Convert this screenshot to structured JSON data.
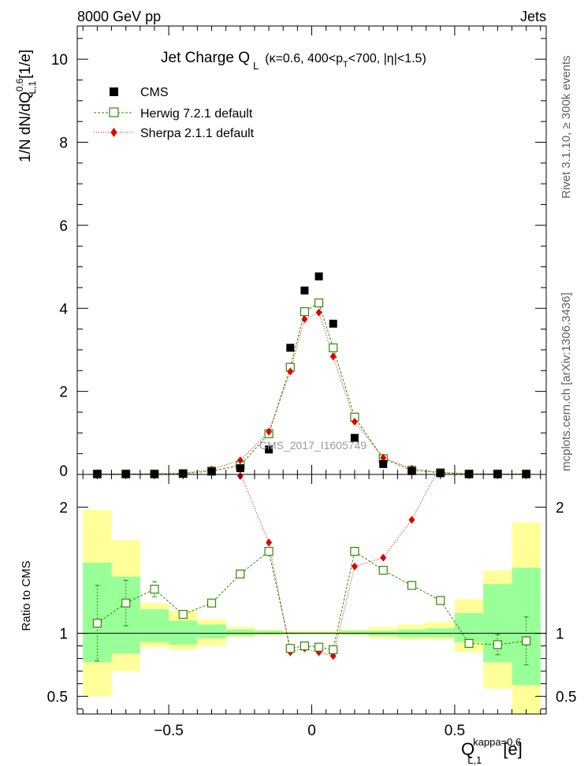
{
  "header": {
    "left_label": "8000 GeV pp",
    "right_label": "Jets",
    "side_label_rivet": "Rivet 3.1.10, ≥ 300k events",
    "side_label_mcplots": "mcplots.cern.ch [arXiv:1306.3436]"
  },
  "chart_data": [
    {
      "type": "scatter",
      "title_main": "Jet Charge Q",
      "title_sub": "L",
      "title_cond": "(κ=0.6, 400<p",
      "title_cond_sub": "T",
      "title_cond_end": "<700, |η|<1.5)",
      "ylabel": "1/N dN/dQ",
      "ylabel_sup": "0.6",
      "ylabel_sub": "L,1",
      "ylabel_unit": "[1/e]",
      "ylim": [
        0,
        10.8
      ],
      "xlim": [
        -0.82,
        0.82
      ],
      "yticks": [
        0,
        2,
        4,
        6,
        8,
        10
      ],
      "ytick_labels": [
        "0",
        "2",
        "4",
        "6",
        "8",
        "10"
      ],
      "watermark": "CMS_2017_I1605749",
      "legend": [
        "CMS",
        "Herwig 7.2.1 default",
        "Sherpa 2.1.1 default"
      ],
      "x": [
        -0.75,
        -0.65,
        -0.55,
        -0.45,
        -0.35,
        -0.25,
        -0.15,
        -0.075,
        -0.025,
        0.025,
        0.075,
        0.15,
        0.25,
        0.35,
        0.45,
        0.55,
        0.65,
        0.75
      ],
      "series": [
        {
          "name": "CMS",
          "color": "#000000",
          "values": [
            0.01,
            0.01,
            0.01,
            0.02,
            0.07,
            0.15,
            0.6,
            3.05,
            4.43,
            4.77,
            3.63,
            0.88,
            0.25,
            0.08,
            0.03,
            0.01,
            0.01,
            0.01
          ]
        },
        {
          "name": "Herwig 7.2.1 default",
          "color": "#2e8b00",
          "values": [
            0.01,
            0.01,
            0.01,
            0.02,
            0.08,
            0.22,
            0.98,
            2.58,
            3.92,
            4.13,
            3.05,
            1.38,
            0.38,
            0.1,
            0.04,
            0.01,
            0.01,
            0.01
          ]
        },
        {
          "name": "Sherpa 2.1.1 default",
          "color": "#e00000",
          "values": [
            0.01,
            0.01,
            0.02,
            0.03,
            0.12,
            0.34,
            1.03,
            2.48,
            3.74,
            3.9,
            2.84,
            1.27,
            0.4,
            0.14,
            0.05,
            0.02,
            0.01,
            0.01
          ]
        }
      ]
    },
    {
      "type": "line",
      "ylabel": "Ratio to CMS",
      "xlabel": "Q",
      "xlabel_sup": "kappa=0.6",
      "xlabel_sub": "L,1",
      "xlabel_unit": "[e]",
      "ylim": [
        0.36,
        2.26
      ],
      "xlim": [
        -0.82,
        0.82
      ],
      "yticks": [
        0.5,
        1,
        2
      ],
      "ytick_labels": [
        "0.5",
        "1",
        "2"
      ],
      "xticks": [
        -0.5,
        0,
        0.5
      ],
      "xtick_labels": [
        "−0.5",
        "0",
        "0.5"
      ],
      "bins": [
        [
          -0.8,
          -0.7
        ],
        [
          -0.7,
          -0.6
        ],
        [
          -0.6,
          -0.5
        ],
        [
          -0.5,
          -0.4
        ],
        [
          -0.4,
          -0.3
        ],
        [
          -0.3,
          -0.2
        ],
        [
          -0.2,
          -0.1
        ],
        [
          -0.1,
          -0.05
        ],
        [
          -0.05,
          0
        ],
        [
          0,
          0.05
        ],
        [
          0.05,
          0.1
        ],
        [
          0.1,
          0.2
        ],
        [
          0.2,
          0.3
        ],
        [
          0.3,
          0.4
        ],
        [
          0.4,
          0.5
        ],
        [
          0.5,
          0.6
        ],
        [
          0.6,
          0.7
        ],
        [
          0.7,
          0.8
        ]
      ],
      "band_outer": [
        [
          0.5,
          1.98
        ],
        [
          0.7,
          1.74
        ],
        [
          0.89,
          1.24
        ],
        [
          0.87,
          1.18
        ],
        [
          0.9,
          1.11
        ],
        [
          0.97,
          1.05
        ],
        [
          0.98,
          1.03
        ],
        [
          0.99,
          1.02
        ],
        [
          0.99,
          1.02
        ],
        [
          0.99,
          1.02
        ],
        [
          0.99,
          1.02
        ],
        [
          0.98,
          1.03
        ],
        [
          0.96,
          1.05
        ],
        [
          0.95,
          1.07
        ],
        [
          0.95,
          1.09
        ],
        [
          0.85,
          1.27
        ],
        [
          0.56,
          1.5
        ],
        [
          0.36,
          1.88
        ]
      ],
      "band_inner": [
        [
          0.77,
          1.56
        ],
        [
          0.84,
          1.45
        ],
        [
          0.93,
          1.19
        ],
        [
          0.91,
          1.1
        ],
        [
          0.96,
          1.07
        ],
        [
          0.98,
          1.03
        ],
        [
          0.99,
          1.02
        ],
        [
          0.995,
          1.01
        ],
        [
          0.995,
          1.01
        ],
        [
          0.995,
          1.01
        ],
        [
          0.995,
          1.01
        ],
        [
          0.99,
          1.02
        ],
        [
          0.98,
          1.02
        ],
        [
          0.97,
          1.03
        ],
        [
          0.97,
          1.04
        ],
        [
          0.93,
          1.16
        ],
        [
          0.77,
          1.39
        ],
        [
          0.59,
          1.52
        ]
      ],
      "x": [
        -0.75,
        -0.65,
        -0.55,
        -0.45,
        -0.35,
        -0.25,
        -0.15,
        -0.075,
        -0.025,
        0.025,
        0.075,
        0.15,
        0.25,
        0.35,
        0.45,
        0.55,
        0.65,
        0.75
      ],
      "series": [
        {
          "name": "Herwig 7.2.1 default",
          "color": "#2e8b00",
          "values": [
            1.08,
            1.24,
            1.35,
            1.15,
            1.24,
            1.47,
            1.65,
            0.88,
            0.9,
            0.89,
            0.87,
            1.65,
            1.5,
            1.38,
            1.26,
            0.92,
            0.91,
            0.94
          ],
          "errors": [
            0.3,
            0.18,
            0.06,
            0.02,
            0.02,
            0.01,
            0.01,
            0.0,
            0.0,
            0.0,
            0.0,
            0.01,
            0.01,
            0.01,
            0.02,
            0.03,
            0.08,
            0.19
          ]
        },
        {
          "name": "Sherpa 2.1.1 default",
          "color": "#e00000",
          "values": [
            null,
            null,
            null,
            null,
            null,
            2.27,
            1.72,
            0.85,
            0.88,
            0.85,
            0.82,
            1.53,
            1.6,
            1.9,
            2.33,
            null,
            null,
            null
          ]
        }
      ]
    }
  ]
}
